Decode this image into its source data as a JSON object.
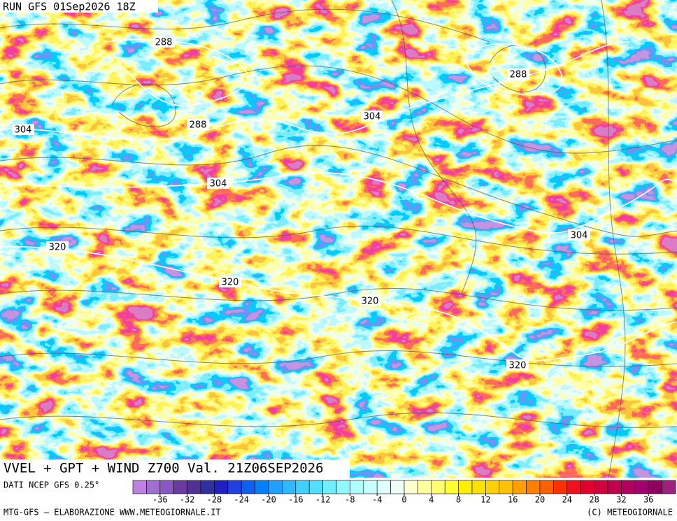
{
  "map": {
    "header": "RUN GFS 01Sep2026 18Z",
    "caption": "VVEL + GPT + WIND Z700 Val. 21Z06SEP2026",
    "source": "DATI NCEP GFS 0.25°",
    "footer_left": "MTG-GFS — ELABORAZIONE WWW.METEOGIORNALE.IT",
    "footer_right": "(C) METEOGIORNALE",
    "contour_labels": [
      288,
      288,
      304,
      288,
      304,
      304,
      304,
      320,
      320,
      320,
      320
    ],
    "colorbar": {
      "lim": [
        -40,
        40
      ],
      "ticks": [
        -36,
        -32,
        -28,
        -24,
        -20,
        -16,
        -12,
        -8,
        -4,
        0,
        4,
        8,
        12,
        16,
        20,
        24,
        28,
        32,
        36
      ],
      "colors": [
        "#c080e0",
        "#a070d0",
        "#8a58c0",
        "#6a3aa0",
        "#503090",
        "#3030a0",
        "#2020c0",
        "#2040e0",
        "#1060f0",
        "#0080ff",
        "#20a0ff",
        "#30b8ff",
        "#40d0ff",
        "#50e0ff",
        "#70f0ff",
        "#90f8ff",
        "#b0ffff",
        "#c8ffff",
        "#e0ffff",
        "#f0fff8",
        "#ffffd0",
        "#ffffa0",
        "#ffff70",
        "#ffff30",
        "#fff000",
        "#ffe000",
        "#ffd000",
        "#ffc000",
        "#ffa000",
        "#ff8000",
        "#ff6000",
        "#ff3000",
        "#f01020",
        "#e00030",
        "#d00040",
        "#c00050",
        "#b00060",
        "#a00070",
        "#900060",
        "#a02080"
      ]
    }
  }
}
